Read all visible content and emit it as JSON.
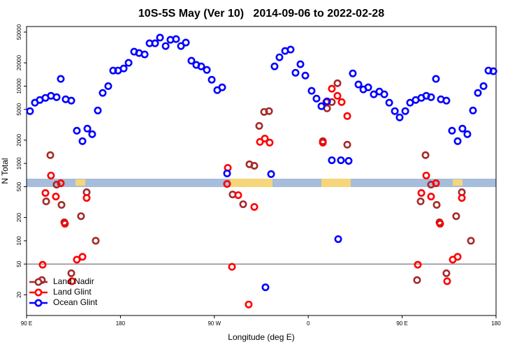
{
  "chart_data": {
    "type": "scatter",
    "title": "10S-5S May (Ver 10)   2014-09-06 to 2022-02-28",
    "x_label": "Longitude (deg E)",
    "y_label": "N Total",
    "log_y": true,
    "legend": "lower left",
    "hlines": [
      50
    ],
    "xlim": [
      90,
      540
    ],
    "ylim": [
      10.8,
      59000
    ],
    "xticks": [
      {
        "value": 90,
        "label": "90 E"
      },
      180,
      {
        "value": 270,
        "label": "90 W"
      },
      {
        "value": 360,
        "label": "0"
      },
      {
        "value": 450,
        "label": "90 E"
      },
      {
        "value": 540,
        "label": "180"
      }
    ],
    "yticks": [
      20,
      50,
      100,
      200,
      500,
      1000,
      2000,
      5000,
      10000,
      20000,
      50000
    ],
    "series": [
      {
        "name": "Land Nadir",
        "color": "#a52a2a",
        "x": [
          104.7,
          108.8,
          112.8,
          118.8,
          123.5,
          126.2,
          132.9,
          142.2,
          147.6,
          156.3,
          287.5,
          297.6,
          303.6,
          308.3,
          313.0,
          317.7,
          322.4,
          374.0,
          378.0,
          382.6,
          388.0,
          397.4,
          464.3,
          467.7,
          472.4,
          477.7,
          483.1,
          485.8,
          492.4,
          501.8,
          507.2,
          515.9
        ],
        "values": [
          31,
          323,
          1280,
          532,
          291,
          173,
          38,
          208,
          424,
          100,
          397,
          297,
          975,
          933,
          3060,
          4640,
          4750,
          1940,
          5160,
          6220,
          10900,
          1750,
          31,
          323,
          1280,
          532,
          291,
          173,
          38,
          208,
          424,
          100
        ]
      },
      {
        "name": "Land Glint",
        "color": "#ff0000",
        "x": [
          105.4,
          108.1,
          113.4,
          118.1,
          122.8,
          126.8,
          133.5,
          138.2,
          143.6,
          147.6,
          282.2,
          282.9,
          286.9,
          292.9,
          302.9,
          308.3,
          313.7,
          318.4,
          323.0,
          374.0,
          377.3,
          382.6,
          388.0,
          392.0,
          397.4,
          465.0,
          468.4,
          473.1,
          477.7,
          482.4,
          486.4,
          493.1,
          498.5,
          503.2,
          507.2
        ],
        "values": [
          49,
          415,
          698,
          373,
          555,
          166,
          30,
          57,
          62,
          358,
          543,
          877,
          46,
          389,
          15,
          274,
          1900,
          2100,
          1860,
          1860,
          6220,
          9250,
          7500,
          6220,
          4100,
          49,
          415,
          698,
          373,
          555,
          166,
          30,
          57,
          62,
          358
        ]
      },
      {
        "name": "Ocean Glint",
        "color": "#0000ff",
        "x": [
          93.3,
          98.0,
          102.7,
          108.1,
          113.4,
          118.8,
          122.8,
          127.5,
          132.9,
          138.2,
          143.6,
          148.3,
          152.9,
          158.3,
          163.0,
          168.3,
          173.0,
          177.7,
          183.1,
          187.8,
          193.1,
          197.8,
          203.2,
          207.9,
          213.2,
          217.9,
          223.3,
          227.9,
          233.3,
          238.0,
          242.7,
          248.0,
          252.7,
          257.4,
          262.8,
          267.5,
          272.8,
          277.5,
          282.2,
          319.0,
          324.4,
          327.7,
          332.4,
          337.8,
          343.1,
          347.8,
          352.5,
          357.2,
          363.2,
          367.9,
          372.6,
          378.0,
          382.6,
          388.7,
          391.3,
          398.7,
          402.7,
          408.1,
          412.8,
          417.5,
          422.8,
          428.2,
          432.9,
          437.6,
          443.0,
          447.6,
          453.0,
          457.6,
          463.0,
          468.4,
          473.1,
          477.7,
          482.4,
          487.1,
          492.4,
          497.8,
          503.2,
          507.8,
          512.5,
          517.9,
          522.6,
          528.0,
          532.7,
          537.4
        ],
        "values": [
          4750,
          6100,
          6620,
          7050,
          7500,
          7200,
          12400,
          6760,
          6490,
          2650,
          1940,
          2820,
          2390,
          4840,
          8170,
          10000,
          15900,
          15900,
          16900,
          20000,
          27900,
          26800,
          25700,
          35800,
          35800,
          42400,
          33000,
          39700,
          40600,
          33000,
          36600,
          21300,
          18800,
          18000,
          16200,
          12100,
          8870,
          9640,
          743,
          25,
          728,
          18000,
          23600,
          28500,
          29700,
          14900,
          19200,
          13700,
          8690,
          6900,
          5500,
          6350,
          1100,
          105,
          1100,
          1080,
          14600,
          10500,
          9060,
          9640,
          7830,
          8510,
          7830,
          6100,
          4750,
          3940,
          4750,
          6100,
          6620,
          7050,
          7500,
          7200,
          12400,
          6760,
          6490,
          2650,
          1940,
          2820,
          2390,
          4840,
          8170,
          10000,
          15900,
          15600
        ]
      }
    ]
  }
}
